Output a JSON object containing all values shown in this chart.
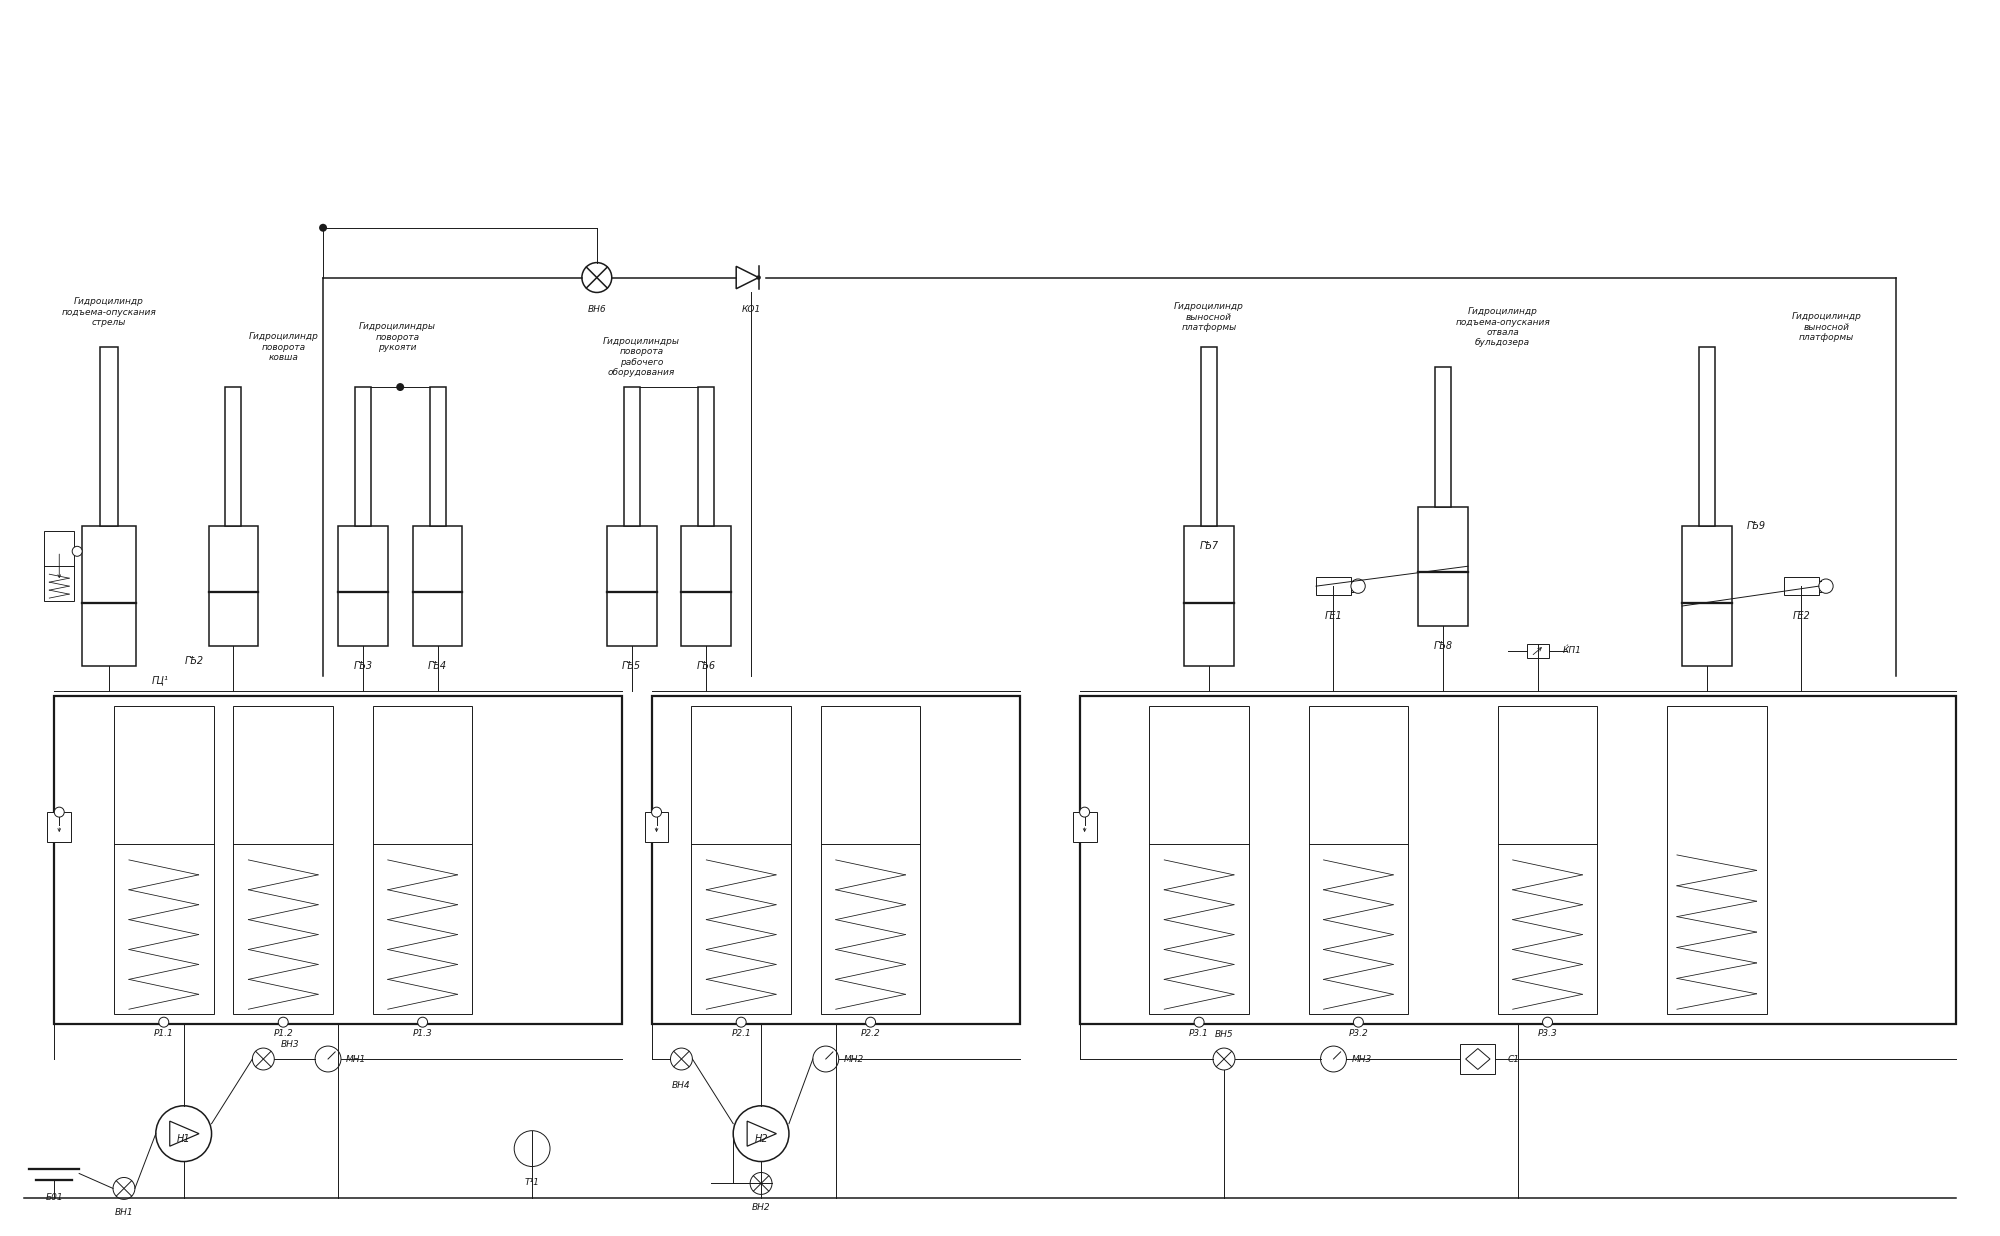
{
  "bg_color": "#ffffff",
  "line_color": "#1a1a1a",
  "text_color": "#1a1a1a",
  "fig_width": 20.0,
  "fig_height": 12.36,
  "labels": {
    "GC1_title": "Гидроцилиндр\nподъема-опускания\nстрелы",
    "GC2_title": "Гидроцилиндр\nповорота\nковша",
    "GC34_title": "Гидроцилиндры\nповорота\nрукояти",
    "GC56_title": "Гидроцилиндры\nповорота\nрабочего\nоборудования",
    "GC7_title": "Гидроцилиндр\nвыносной\nплатформы",
    "GC8_title": "Гидроцилиндр\nподъема-опускания\nотвала\nбульдозера",
    "GC9_title": "Гидроцилиндр\nвыносной\nплатформы",
    "GC1": "ГЦ¹",
    "GC2": "ГѢ2",
    "GC3": "ГѢ3",
    "GC4": "ГѢ4",
    "GC5": "ГѢ5",
    "GC6": "ГѢ6",
    "GC7": "ГѢ7",
    "GC8": "ГѢ8",
    "GC9": "ГѢ9",
    "GZM1": "ГЕ1",
    "GZM2": "ГЕ2",
    "R11": "Р1.1",
    "R12": "Р1.2",
    "R13": "Р1.3",
    "R21": "Р2.1",
    "R22": "Р2.2",
    "R31": "Р3.1",
    "R32": "Р3.2",
    "R33": "Р3.3",
    "BN1": "ВН1",
    "BN2": "ВН2",
    "BN3": "ВН3",
    "BN4": "ВН4",
    "BN5": "ВН5",
    "BN6": "ВН6",
    "KO1": "КО1",
    "MN1": "МН1",
    "MN2": "МН2",
    "MN3": "МН3",
    "N1": "Н1",
    "N2": "Н2",
    "B1": "Б01",
    "T1": "Т¹1",
    "F1": "С1",
    "DR1": "ЌП1"
  }
}
